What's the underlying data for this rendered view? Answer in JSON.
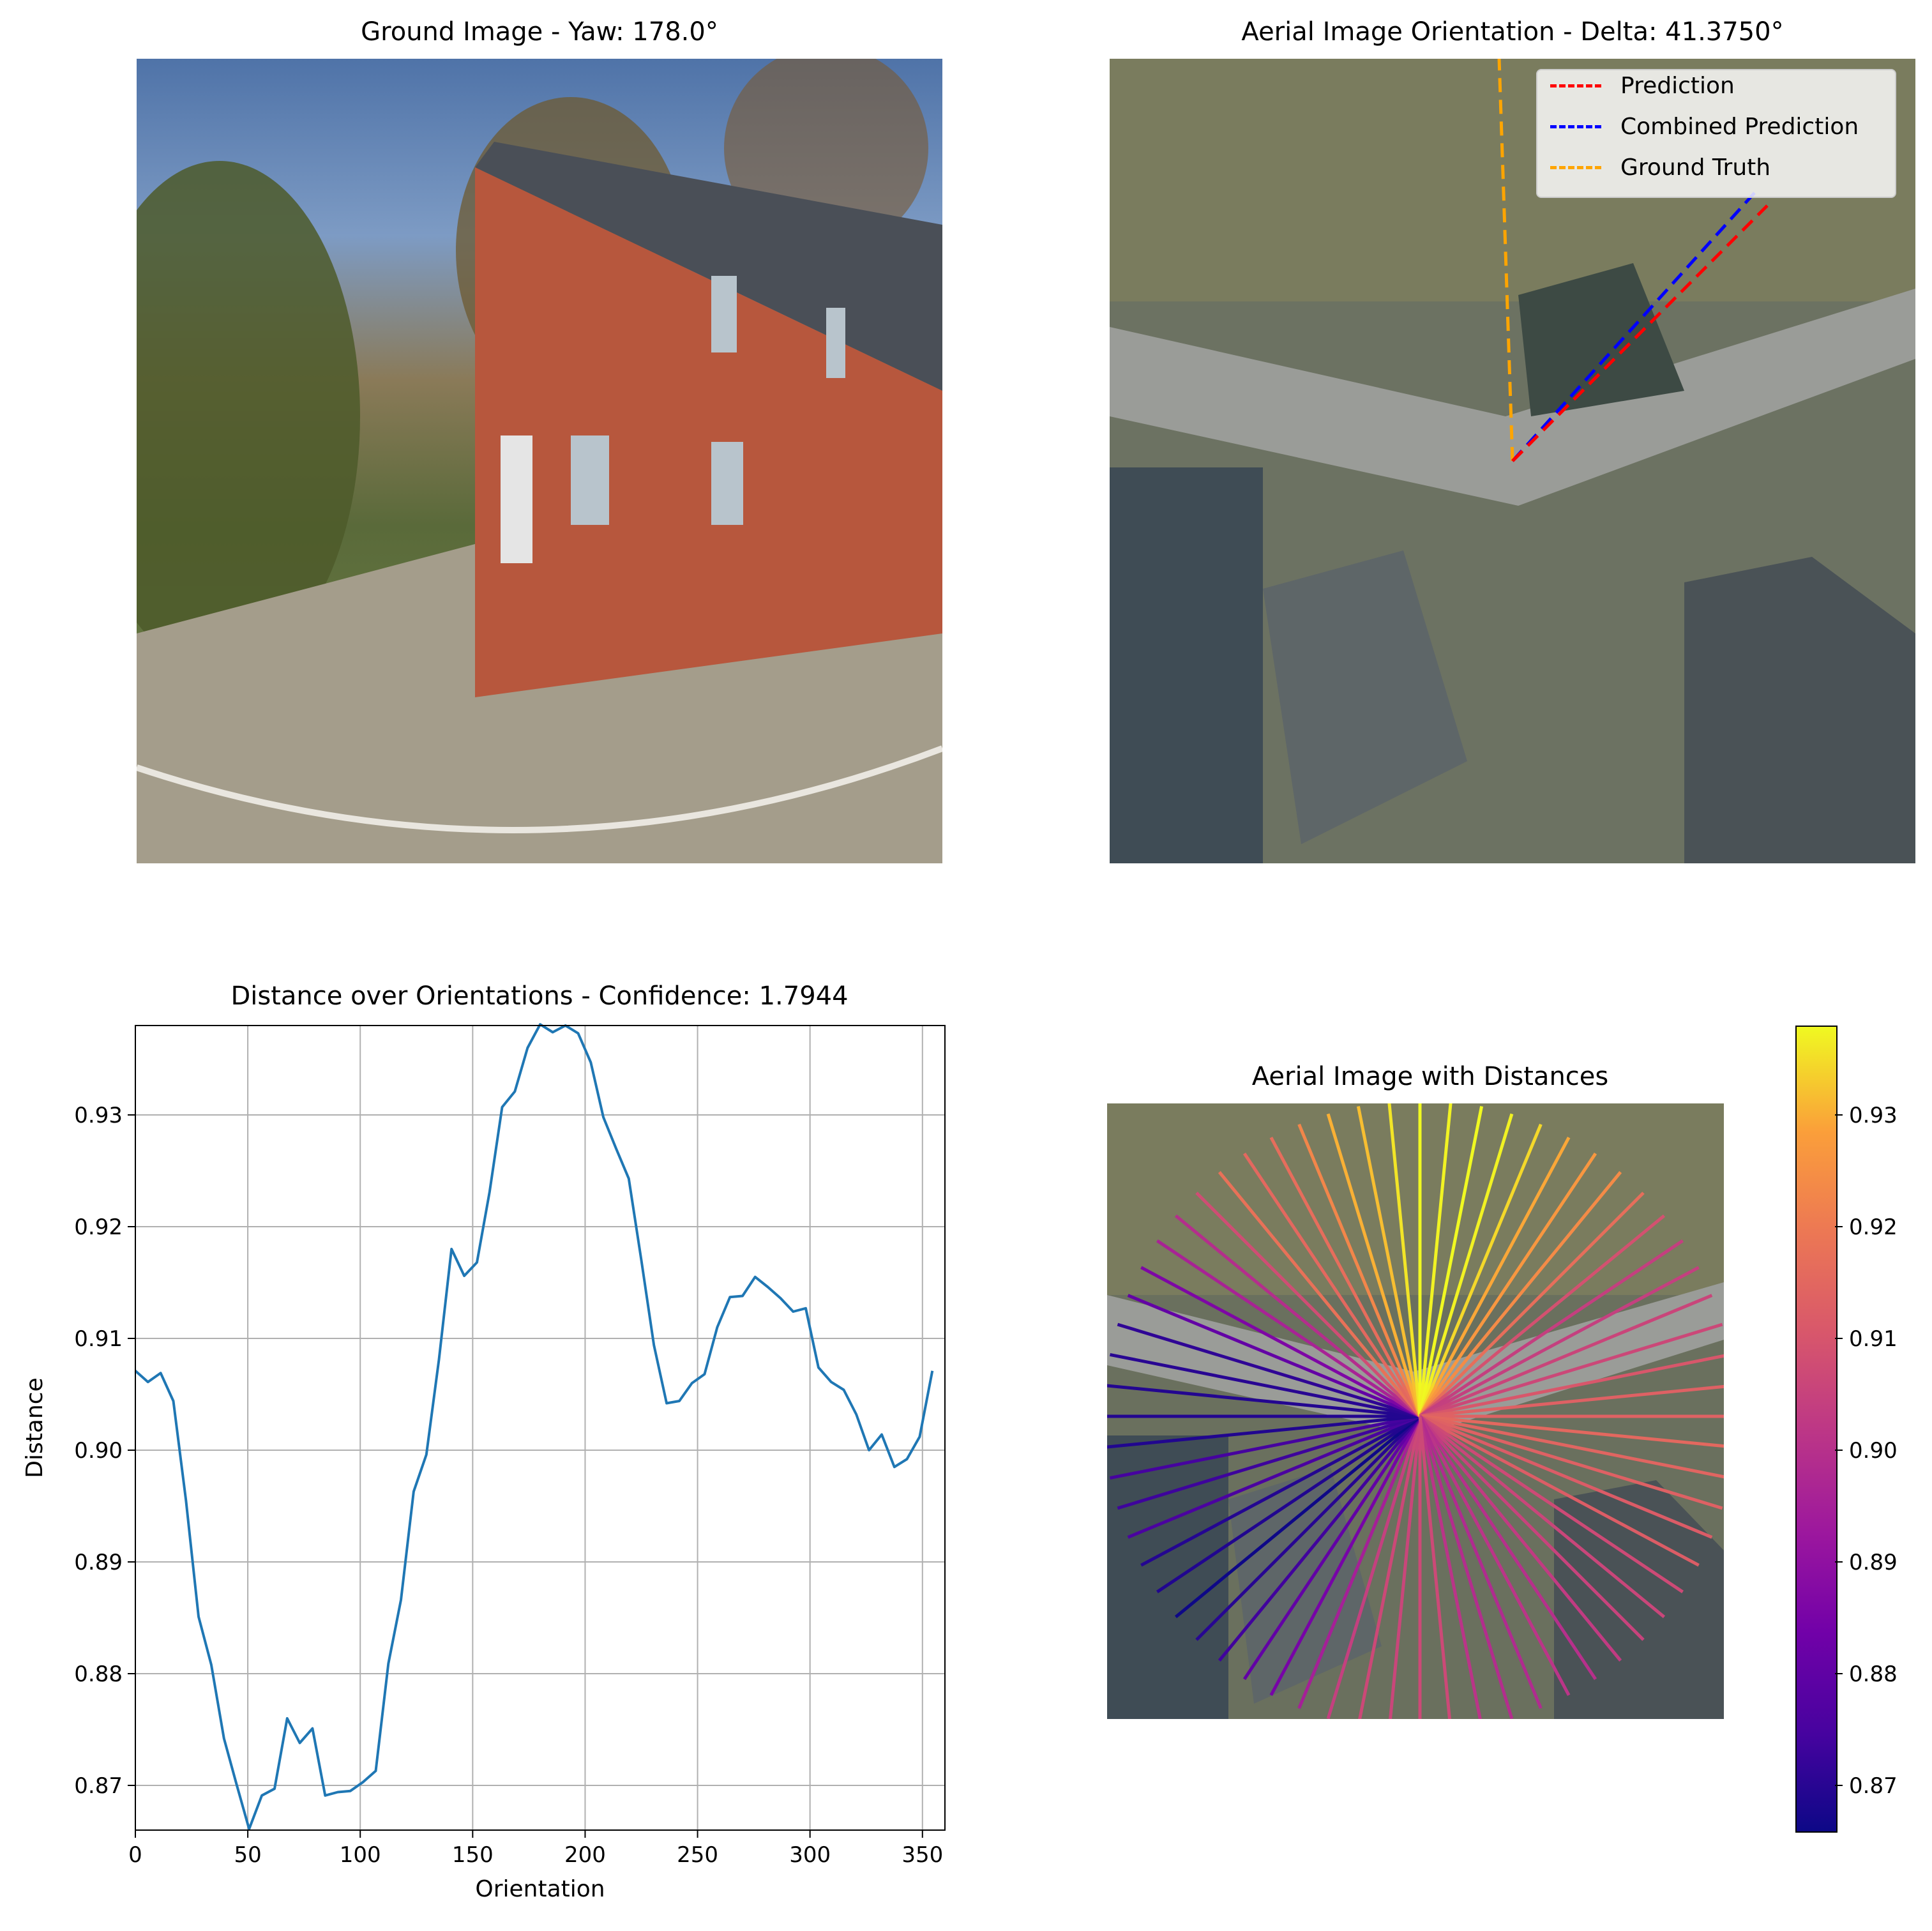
{
  "panels": {
    "ground": {
      "title": "Ground Image - Yaw: 178.0°",
      "image_description": "ground-level photo of a red brick two-storey building with a dark roof, trees behind, lawn and curved road in foreground"
    },
    "aerial": {
      "title": "Aerial Image Orientation - Delta: 41.3750°",
      "legend": [
        {
          "label": "Prediction",
          "color": "#ff0000"
        },
        {
          "label": "Combined Prediction",
          "color": "#0000ff"
        },
        {
          "label": "Ground Truth",
          "color": "#ffa500"
        }
      ]
    },
    "distance_chart": {
      "title": "Distance over Orientations - Confidence: 1.7944"
    },
    "aerial_distances": {
      "title": "Aerial Image with Distances",
      "colorbar_ticks": [
        "0.87",
        "0.88",
        "0.89",
        "0.90",
        "0.91",
        "0.92",
        "0.93"
      ]
    }
  },
  "chart_data": [
    {
      "type": "line",
      "title": "Distance over Orientations - Confidence: 1.7944",
      "xlabel": "Orientation",
      "ylabel": "Distance",
      "xlim": [
        0,
        360
      ],
      "ylim": [
        0.866,
        0.938
      ],
      "xticks": [
        "0",
        "50",
        "100",
        "150",
        "200",
        "250",
        "300",
        "350"
      ],
      "yticks": [
        "0.87",
        "0.88",
        "0.89",
        "0.90",
        "0.91",
        "0.92",
        "0.93"
      ],
      "grid": true,
      "series": [
        {
          "color": "#1f77b4",
          "x": [
            0,
            5.6,
            11.25,
            16.9,
            22.5,
            28.1,
            33.75,
            39.4,
            45,
            50.6,
            56.25,
            61.9,
            67.5,
            73.1,
            78.75,
            84.4,
            90,
            95.6,
            101.25,
            106.9,
            112.5,
            118.1,
            123.75,
            129.4,
            135,
            140.6,
            146.25,
            151.9,
            157.5,
            163.1,
            168.75,
            174.4,
            180,
            185.6,
            191.25,
            196.9,
            202.5,
            208.1,
            213.75,
            219.4,
            225,
            230.6,
            236.25,
            241.9,
            247.5,
            253.1,
            258.75,
            264.4,
            270,
            275.6,
            281.25,
            286.9,
            292.5,
            298.1,
            303.75,
            309.4,
            315,
            320.6,
            326.25,
            331.9,
            337.5,
            343.1,
            348.75,
            354.4
          ],
          "values": [
            0.9071,
            0.9061,
            0.9069,
            0.9044,
            0.8955,
            0.8851,
            0.8808,
            0.8742,
            0.8701,
            0.8661,
            0.8691,
            0.8697,
            0.876,
            0.8738,
            0.8751,
            0.8691,
            0.8694,
            0.8695,
            0.8703,
            0.8713,
            0.8809,
            0.8866,
            0.8963,
            0.8996,
            0.9081,
            0.918,
            0.9156,
            0.9168,
            0.9231,
            0.9307,
            0.9321,
            0.936,
            0.9381,
            0.9374,
            0.938,
            0.9373,
            0.9347,
            0.9298,
            0.927,
            0.9243,
            0.917,
            0.9094,
            0.9042,
            0.9044,
            0.906,
            0.9068,
            0.911,
            0.9137,
            0.9138,
            0.9155,
            0.9146,
            0.9136,
            0.9124,
            0.9127,
            0.9074,
            0.9061,
            0.9054,
            0.9032,
            0.9,
            0.9014,
            0.8985,
            0.8992,
            0.9012,
            0.9071
          ]
        }
      ]
    },
    {
      "type": "scatter",
      "title": "Aerial Image with Distances",
      "description": "64 rays from the image centre, one per orientation, coloured by the distance values of the line chart using a plasma colormap",
      "colormap": "plasma",
      "clim": [
        0.866,
        0.938
      ]
    }
  ]
}
